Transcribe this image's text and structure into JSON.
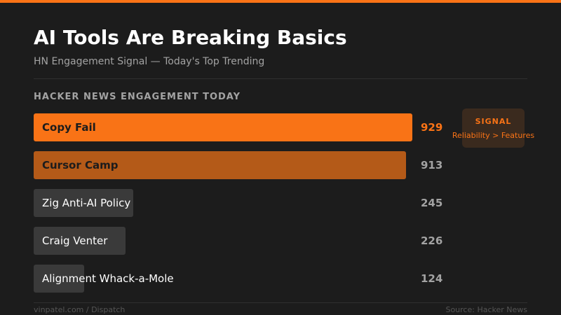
{
  "header": {
    "title": "AI Tools Are Breaking Basics",
    "subtitle": "HN Engagement Signal — Today's Top Trending"
  },
  "section": {
    "label": "HACKER NEWS ENGAGEMENT TODAY"
  },
  "signal": {
    "title": "SIGNAL",
    "text": "Reliability > Features"
  },
  "footer": {
    "left": "vinpatel.com / Dispatch",
    "right": "Source: Hacker News"
  },
  "colors": {
    "accent": "#f97316",
    "secondary": "#b45a18",
    "neutral": "#3a3a3a",
    "background": "#1c1c1c"
  },
  "chart_data": {
    "type": "bar",
    "orientation": "horizontal",
    "title": "HACKER NEWS ENGAGEMENT TODAY",
    "categories": [
      "Copy Fail",
      "Cursor Camp",
      "Zig Anti-AI Policy",
      "Craig Venter",
      "Alignment Whack-a-Mole"
    ],
    "values": [
      929,
      913,
      245,
      226,
      124
    ],
    "highlight": [
      "primary",
      "secondary",
      "none",
      "none",
      "none"
    ],
    "xlim": [
      0,
      929
    ],
    "grid": false,
    "legend": "none"
  }
}
